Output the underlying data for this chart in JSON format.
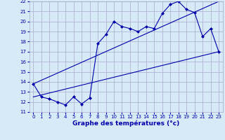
{
  "title": "Graphe des températures (°c)",
  "bg_color": "#d6eaf8",
  "grid_color": "#aaaacc",
  "line_color": "#0000aa",
  "xlim": [
    -0.5,
    23.5
  ],
  "ylim": [
    11,
    22
  ],
  "xticks": [
    0,
    1,
    2,
    3,
    4,
    5,
    6,
    7,
    8,
    9,
    10,
    11,
    12,
    13,
    14,
    15,
    16,
    17,
    18,
    19,
    20,
    21,
    22,
    23
  ],
  "yticks": [
    11,
    12,
    13,
    14,
    15,
    16,
    17,
    18,
    19,
    20,
    21,
    22
  ],
  "line1_x": [
    0,
    1,
    2,
    3,
    4,
    5,
    6,
    7,
    8,
    9,
    10,
    11,
    12,
    13,
    14,
    15,
    16,
    17,
    18,
    19,
    20,
    21,
    22,
    23
  ],
  "line1_y": [
    13.8,
    12.5,
    12.3,
    12.0,
    11.7,
    12.5,
    11.8,
    12.4,
    17.8,
    18.7,
    20.0,
    19.5,
    19.3,
    19.0,
    19.5,
    19.3,
    20.8,
    21.7,
    22.0,
    21.2,
    20.9,
    18.5,
    19.3,
    17.0
  ],
  "line2_x": [
    0,
    23
  ],
  "line2_y": [
    12.5,
    17.0
  ],
  "line3_x": [
    0,
    23
  ],
  "line3_y": [
    13.8,
    22.0
  ],
  "tick_fontsize": 5.0,
  "label_fontsize": 6.5,
  "marker_size": 2.5,
  "line_width": 0.8
}
